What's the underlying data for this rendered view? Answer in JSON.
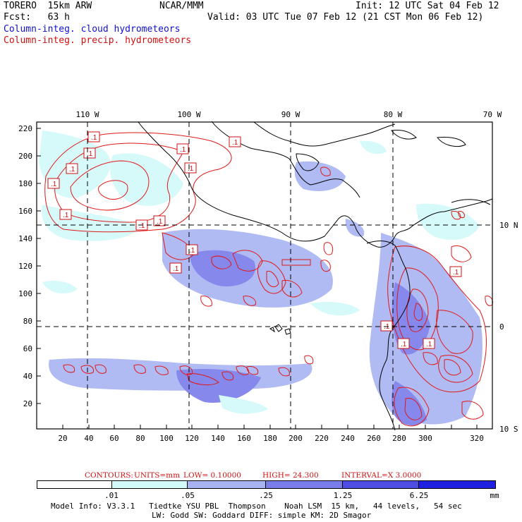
{
  "header": {
    "model": "TORERO  15km ARW",
    "org": "NCAR/MMM",
    "init": "Init: 12 UTC Sat 04 Feb 12",
    "fcst": "Fcst:   63 h",
    "valid": "Valid: 03 UTC Tue 07 Feb 12 (21 CST Mon 06 Feb 12)",
    "field1": "Column-integ. cloud hydrometeors",
    "field2": "Column-integ. precip. hydrometeors",
    "field1_color": "#1010d0",
    "field2_color": "#d01010"
  },
  "axes": {
    "top_lon": [
      "110 W",
      "100 W",
      "90 W",
      "80 W",
      "70 W"
    ],
    "right_lat": [
      "10 N",
      "0",
      "10 S"
    ],
    "y_ticks": [
      "220",
      "200",
      "180",
      "160",
      "140",
      "120",
      "100",
      "80",
      "60",
      "40",
      "20"
    ],
    "x_ticks": [
      "20",
      "40",
      "60",
      "80",
      "100",
      "120",
      "140",
      "160",
      "180",
      "200",
      "220",
      "240",
      "260",
      "280",
      "300",
      "320"
    ]
  },
  "contour_labels": [
    ".1",
    ".1",
    ".1",
    ".1",
    ".1",
    ".1",
    ".1",
    ".1",
    ".1",
    ".1",
    ".1",
    ".1",
    ".1",
    ".1",
    ".1",
    ".1"
  ],
  "contour_info": {
    "contours": "CONTOURS:",
    "units": "UNITS=mm",
    "low": "LOW= 0.10000",
    "high": "HIGH=  24.300",
    "interval": "INTERVAL=X  3.0000"
  },
  "colorbar": {
    "labels": [
      ".01",
      ".05",
      ".25",
      "1.25",
      "6.25"
    ],
    "unit": "mm",
    "colors": [
      "#ffffff",
      "#d2fafa",
      "#a8b4f2",
      "#7a7cea",
      "#4e4ee4",
      "#2020e0"
    ]
  },
  "footer": {
    "line1": "Model Info: V3.3.1   Tiedtke YSU PBL  Thompson    Noah LSM  15 km,   44 levels,   54 sec",
    "line2": "LW: Godd SW: Goddard DIFF: simple KM: 2D Smagor"
  }
}
